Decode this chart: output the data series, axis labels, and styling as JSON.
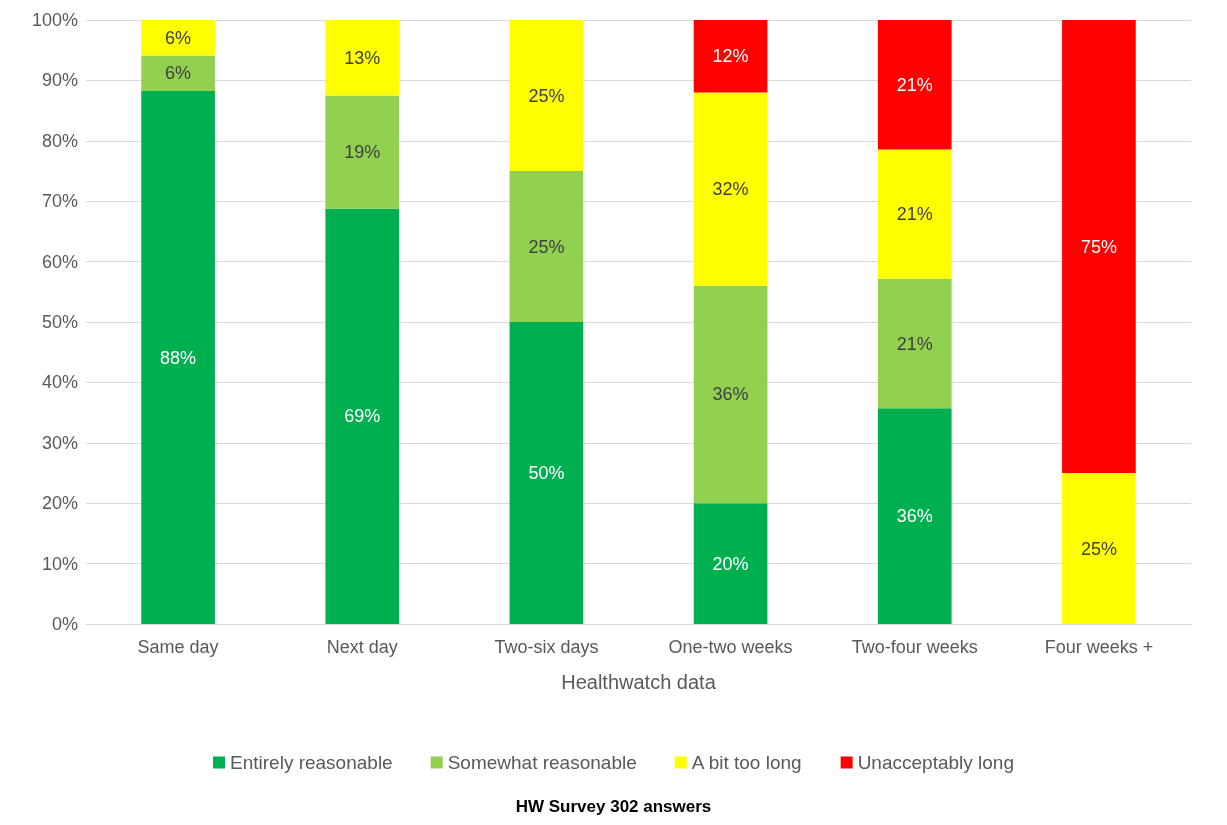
{
  "chart_data": {
    "type": "bar",
    "stacked": true,
    "xlabel": "Healthwatch data",
    "annotations": [
      "HW Survey 302 answers"
    ],
    "categories": [
      "Same day",
      "Next day",
      "Two-six days",
      "One-two weeks",
      "Two-four weeks",
      "Four weeks +"
    ],
    "series": [
      {
        "name": "Entirely reasonable",
        "color": "#00b050",
        "values": [
          88.24,
          68.75,
          50,
          20,
          35.71,
          null
        ],
        "value_labels": [
          "88%",
          "69%",
          "50%",
          "20%",
          "36%",
          null
        ]
      },
      {
        "name": "Somewhat reasonable",
        "color": "#92d050",
        "values": [
          5.88,
          18.75,
          25,
          36,
          21.43,
          null
        ],
        "value_labels": [
          "6%",
          "19%",
          "25%",
          "36%",
          "21%",
          null
        ]
      },
      {
        "name": "A bit too long",
        "color": "#ffff00",
        "values": [
          5.88,
          12.5,
          25,
          32,
          21.43,
          25
        ],
        "value_labels": [
          "6%",
          "13%",
          "25%",
          "32%",
          "21%",
          "25%"
        ]
      },
      {
        "name": "Unacceptably long",
        "color": "#ff0000",
        "values": [
          null,
          null,
          null,
          12,
          21.43,
          75
        ],
        "value_labels": [
          null,
          null,
          null,
          "12%",
          "21%",
          "75%"
        ]
      }
    ],
    "ylim": [
      0,
      100
    ],
    "yticks": [
      {
        "value": 0,
        "label": "0%"
      },
      {
        "value": 10,
        "label": "10%"
      },
      {
        "value": 20,
        "label": "20%"
      },
      {
        "value": 30,
        "label": "30%"
      },
      {
        "value": 40,
        "label": "40%"
      },
      {
        "value": 50,
        "label": "50%"
      },
      {
        "value": 60,
        "label": "60%"
      },
      {
        "value": 70,
        "label": "70%"
      },
      {
        "value": 80,
        "label": "80%"
      },
      {
        "value": 90,
        "label": "90%"
      },
      {
        "value": 100,
        "label": "100%"
      }
    ],
    "grid": "y",
    "legend": "bottom"
  }
}
